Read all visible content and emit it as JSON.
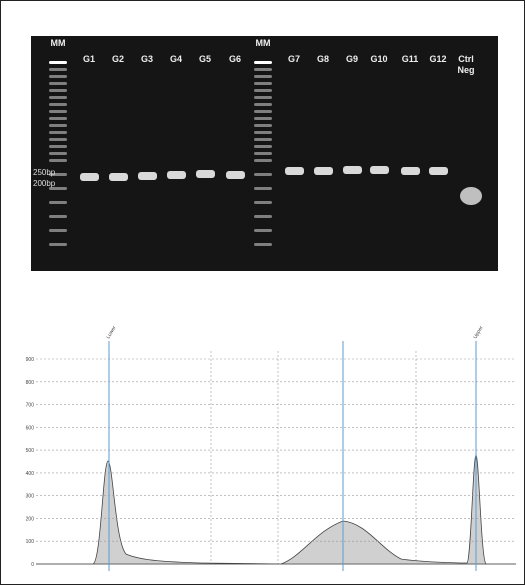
{
  "gel": {
    "lanes": [
      "MM",
      "G1",
      "G2",
      "G3",
      "G4",
      "G5",
      "G6",
      "MM",
      "G7",
      "G8",
      "G9",
      "G10",
      "G11",
      "G12",
      "Ctrl Neg"
    ],
    "size_markers": [
      "250bp",
      "200bp"
    ]
  },
  "electropherogram": {
    "peak_labels": [
      "Lower",
      "Upper"
    ],
    "yticks": [
      0,
      100,
      200,
      300,
      400,
      500,
      600,
      700,
      800,
      900
    ],
    "ylim": [
      0,
      900
    ]
  }
}
